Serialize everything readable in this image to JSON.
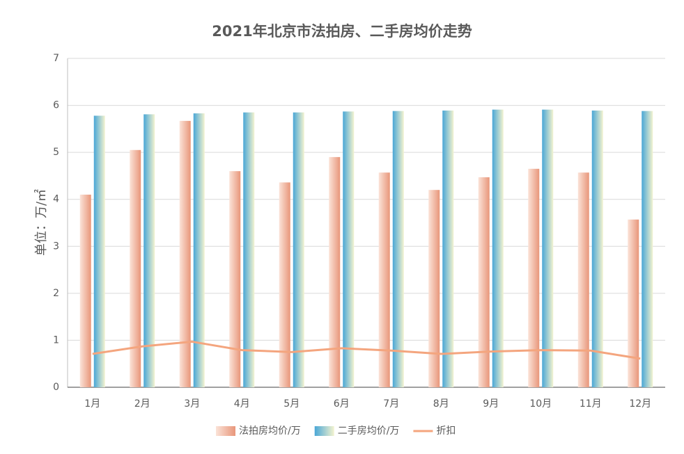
{
  "chart_data": {
    "type": "bar",
    "title": "2021年北京市法拍房、二手房均价走势",
    "y_label": "单位：万/㎡",
    "categories": [
      "1月",
      "2月",
      "3月",
      "4月",
      "5月",
      "6月",
      "7月",
      "8月",
      "9月",
      "10月",
      "11月",
      "12月"
    ],
    "series": [
      {
        "name": "法拍房均价/万",
        "type": "bar",
        "color": "#e8967a",
        "values": [
          4.1,
          5.05,
          5.67,
          4.6,
          4.36,
          4.9,
          4.57,
          4.2,
          4.47,
          4.65,
          4.57,
          3.57
        ]
      },
      {
        "name": "二手房均价/万",
        "type": "bar",
        "color": "#4aa7d6",
        "values": [
          5.78,
          5.81,
          5.83,
          5.85,
          5.85,
          5.87,
          5.88,
          5.89,
          5.91,
          5.91,
          5.89,
          5.88
        ]
      },
      {
        "name": "折扣",
        "type": "line",
        "color": "#f4a57e",
        "values": [
          0.71,
          0.87,
          0.97,
          0.79,
          0.75,
          0.83,
          0.78,
          0.71,
          0.76,
          0.79,
          0.78,
          0.61
        ]
      }
    ],
    "ylim": [
      0,
      7
    ],
    "yticks": [
      0,
      1,
      2,
      3,
      4,
      5,
      6,
      7
    ],
    "grid": true,
    "legend": "bottom"
  }
}
